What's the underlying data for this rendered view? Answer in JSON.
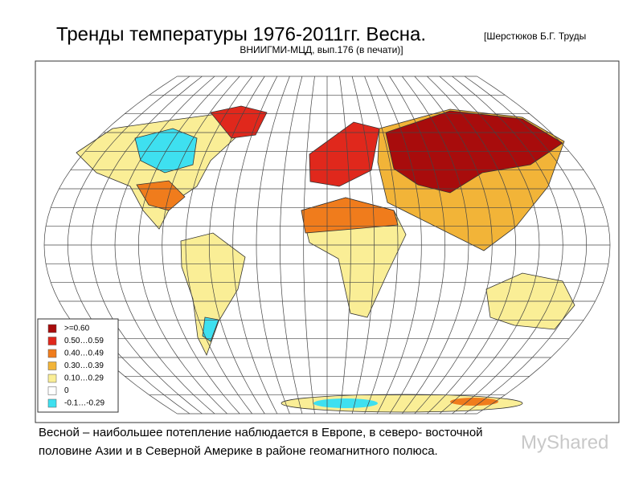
{
  "header": {
    "title": "Тренды температуры 1976-2011гг. Весна.",
    "source_line1": "[Шерстюков Б.Г. Труды",
    "source_line2": "ВНИИГМИ-МЦД, вып.176 (в печати)]"
  },
  "legend": {
    "items": [
      {
        "label": ">=0.60",
        "color": "#a80c0c"
      },
      {
        "label": "0.50…0.59",
        "color": "#e0281c"
      },
      {
        "label": "0.40…0.49",
        "color": "#f07c1c"
      },
      {
        "label": "0.30…0.39",
        "color": "#f2b438"
      },
      {
        "label": "0.10…0.29",
        "color": "#faee96"
      },
      {
        "label": "0",
        "color": "#ffffff"
      },
      {
        "label": "-0.1…-0.29",
        "color": "#3ee0f0"
      }
    ]
  },
  "caption": {
    "lines": [
      "Весной – наибольшее потепление наблюдается в Европе, в северо- восточной",
      "половине Азии  и в Северной Америке в районе геомагнитного полюса."
    ]
  },
  "watermark": "MyShared"
}
